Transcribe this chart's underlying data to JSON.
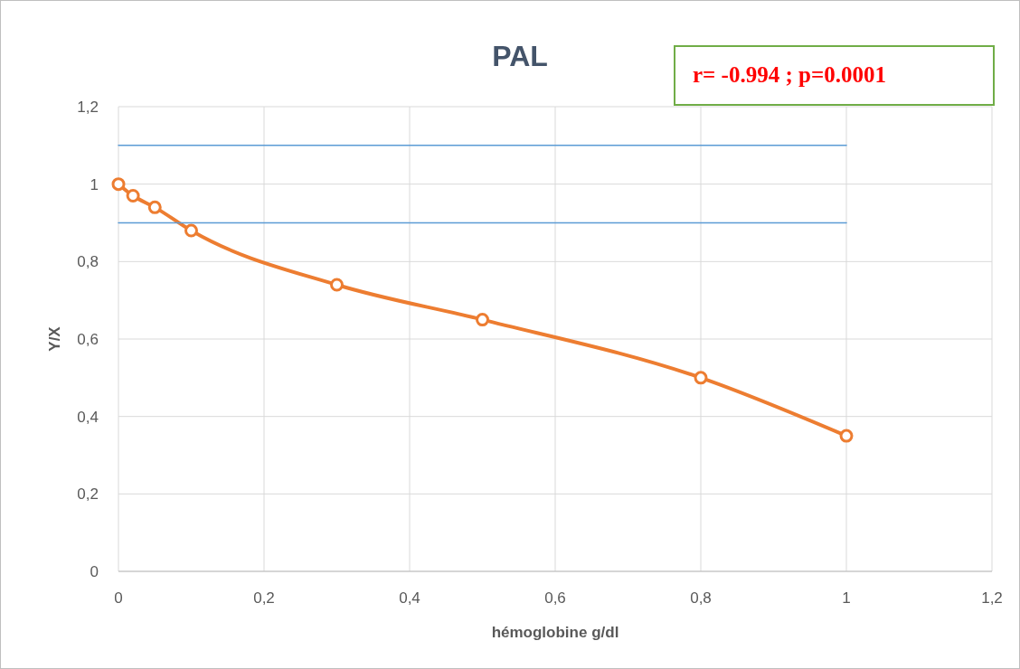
{
  "chart_data": {
    "type": "line",
    "title": "PAL",
    "xlabel": "hémoglobine g/dl",
    "ylabel": "Y/X",
    "annotations": [
      "r= -0.994 ; p=0.0001"
    ],
    "series": [
      {
        "color": "#ed7d31",
        "marker": "circle",
        "x": [
          0,
          0.02,
          0.05,
          0.1,
          0.3,
          0.5,
          0.8,
          1
        ],
        "values": [
          1,
          0.97,
          0.94,
          0.88,
          0.74,
          0.65,
          0.5,
          0.35
        ]
      },
      {
        "color": "#5b9bd5",
        "marker": "none",
        "x": [
          0,
          1
        ],
        "values": [
          1.1,
          1.1
        ]
      },
      {
        "color": "#5b9bd5",
        "marker": "none",
        "x": [
          0,
          1
        ],
        "values": [
          0.9,
          0.9
        ]
      }
    ],
    "xlim": [
      0,
      1.2
    ],
    "ylim": [
      0,
      1.2
    ],
    "xticks": [
      0,
      {
        "value": 0.2,
        "label": "0,2"
      },
      {
        "value": 0.4,
        "label": "0,4"
      },
      {
        "value": 0.6,
        "label": "0,6"
      },
      {
        "value": 0.8,
        "label": "0,8"
      },
      1,
      {
        "value": 1.2,
        "label": "1,2"
      }
    ],
    "yticks": [
      0,
      {
        "value": 0.2,
        "label": "0,2"
      },
      {
        "value": 0.4,
        "label": "0,4"
      },
      {
        "value": 0.6,
        "label": "0,6"
      },
      {
        "value": 0.8,
        "label": "0,8"
      },
      1,
      {
        "value": 1.2,
        "label": "1,2"
      }
    ],
    "grid": true
  }
}
